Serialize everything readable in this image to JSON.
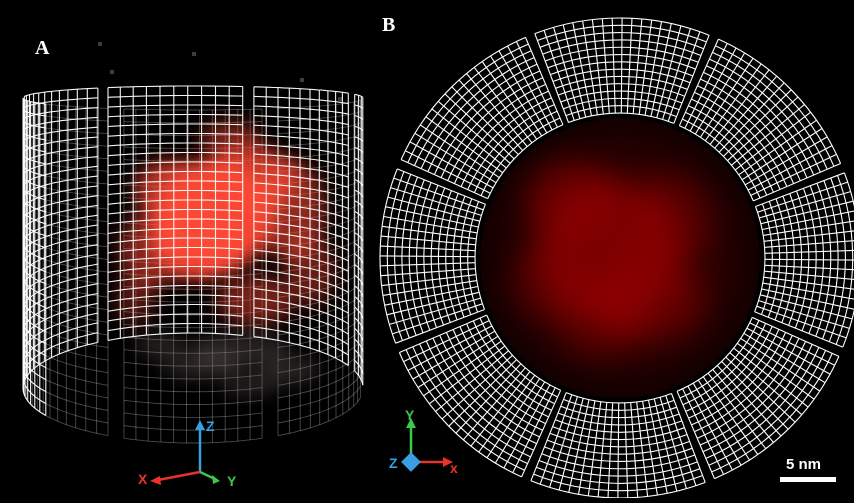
{
  "panels": {
    "a": {
      "label": "A"
    },
    "b": {
      "label": "B"
    }
  },
  "axes_a": {
    "z": "Z",
    "x": "X",
    "y": "Y"
  },
  "axes_b": {
    "y": "Y",
    "z": "Z",
    "x": "x"
  },
  "scale_bar": {
    "label": "5 nm"
  },
  "colors": {
    "background": "#000000",
    "grid": "#ffffff",
    "signal_a": "#ff4a36",
    "signal_b": "#a00000",
    "axis_x": "#e8322a",
    "axis_y": "#3cc84a",
    "axis_z": "#3a9ee0"
  },
  "icons": {
    "axes_a": "3d-axes-triad-icon",
    "axes_b": "3d-axes-triad-icon"
  }
}
